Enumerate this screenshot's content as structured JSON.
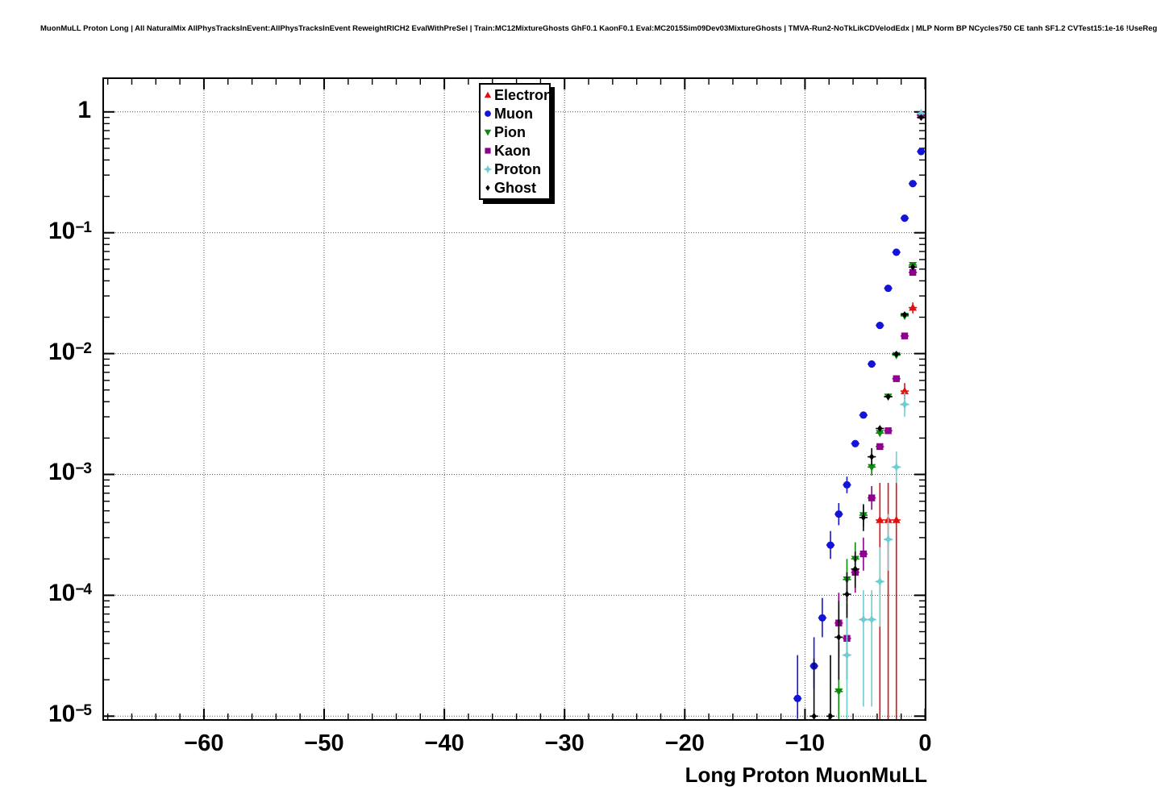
{
  "header": {
    "title": "MuonMuLL Proton Long | All NaturalMix AllPhysTracksInEvent:AllPhysTracksInEvent ReweightRICH2 EvalWithPreSel | Train:MC12MixtureGhosts GhF0.1 KaonF0.1 Eval:MC2015Sim09Dev03MixtureGhosts | TMVA-Run2-NoTkLikCDVelodEdx | MLP Norm BP NCycles750 CE tanh SF1.2 CVTest15:1e-16 !UseReg"
  },
  "legend": {
    "items": [
      {
        "label": "Electron",
        "series": "electron"
      },
      {
        "label": "Muon",
        "series": "muon"
      },
      {
        "label": "Pion",
        "series": "pion"
      },
      {
        "label": "Kaon",
        "series": "kaon"
      },
      {
        "label": "Proton",
        "series": "proton"
      },
      {
        "label": "Ghost",
        "series": "ghost"
      }
    ]
  },
  "colors": {
    "frame": "#000000",
    "grid": "#555555",
    "background": "#ffffff"
  },
  "chart_data": {
    "type": "scatter",
    "title": "MuonMuLL Proton Long | All NaturalMix AllPhysTracksInEvent:AllPhysTracksInEvent ReweightRICH2 EvalWithPreSel | Train:MC12MixtureGhosts GhF0.1 KaonF0.1 Eval:MC2015Sim09Dev03MixtureGhosts | TMVA-Run2-NoTkLikCDVelodEdx | MLP Norm BP NCycles750 CE tanh SF1.2 CVTest15:1e-16 !UseReg",
    "xlabel": "Long Proton MuonMuLL",
    "ylabel": "",
    "y_scale": "log",
    "grid": true,
    "legend_position": "top-right",
    "x_range": [
      -68.38,
      0.033
    ],
    "y_range": [
      9.3e-06,
      1.9
    ],
    "x_ticks": {
      "major": [
        {
          "value": -60,
          "label": "−60"
        },
        {
          "value": -50,
          "label": "−50"
        },
        {
          "value": -40,
          "label": "−40"
        },
        {
          "value": -30,
          "label": "−30"
        },
        {
          "value": -20,
          "label": "−20"
        },
        {
          "value": -10,
          "label": "−10"
        },
        {
          "value": 0,
          "label": "0"
        }
      ],
      "minor_step": 2
    },
    "y_ticks": {
      "labels": [
        {
          "value": 1,
          "base": "1",
          "sup": ""
        },
        {
          "value": 0.1,
          "base": "10",
          "sup": "−1"
        },
        {
          "value": 0.01,
          "base": "10",
          "sup": "−2"
        },
        {
          "value": 0.001,
          "base": "10",
          "sup": "−3"
        },
        {
          "value": 0.0001,
          "base": "10",
          "sup": "−4"
        },
        {
          "value": 1e-05,
          "base": "10",
          "sup": "−5"
        }
      ]
    },
    "bin_half_width": 0.343,
    "series": [
      {
        "name": "electron",
        "label": "Electron",
        "marker": "triangle-up",
        "color": "#e11010",
        "points": [
          [
            -0.34,
            0.945
          ],
          [
            -1.03,
            0.024,
            0.0215,
            0.0265
          ],
          [
            -1.71,
            0.0049,
            0.0042,
            0.0057
          ],
          [
            -2.4,
            0.00042,
            1e-06,
            0.00085
          ],
          [
            -3.08,
            0.00042,
            1e-06,
            0.00085
          ],
          [
            -3.77,
            0.00042,
            1e-06,
            0.00085
          ]
        ]
      },
      {
        "name": "muon",
        "label": "Muon",
        "marker": "circle",
        "color": "#1414d8",
        "points": [
          [
            -0.34,
            0.47
          ],
          [
            -1.03,
            0.255
          ],
          [
            -1.71,
            0.132
          ],
          [
            -2.4,
            0.069
          ],
          [
            -3.08,
            0.0347
          ],
          [
            -3.77,
            0.0171
          ],
          [
            -4.45,
            0.0082
          ],
          [
            -5.14,
            0.0031
          ],
          [
            -5.82,
            0.0018
          ],
          [
            -6.51,
            0.00082,
            0.0007,
            0.00096
          ],
          [
            -7.19,
            0.00047,
            0.00038,
            0.00058
          ],
          [
            -7.88,
            0.00026,
            0.0002,
            0.00034
          ],
          [
            -8.56,
            6.5e-05,
            4.5e-05,
            9.5e-05
          ],
          [
            -9.25,
            2.6e-05,
            1.7e-05,
            4.5e-05
          ],
          [
            -10.62,
            1.4e-05,
            9.5e-06,
            3.2e-05
          ]
        ]
      },
      {
        "name": "pion",
        "label": "Pion",
        "marker": "triangle-down",
        "color": "#0c8a0c",
        "points": [
          [
            -0.34,
            0.935
          ],
          [
            -1.03,
            0.054
          ],
          [
            -1.71,
            0.0205
          ],
          [
            -2.4,
            0.0097
          ],
          [
            -3.08,
            0.0044
          ],
          [
            -3.77,
            0.0022
          ],
          [
            -4.45,
            0.00115,
            0.00098,
            0.00135
          ],
          [
            -5.14,
            0.00046,
            0.00037,
            0.00057
          ],
          [
            -5.82,
            0.0002,
            0.000145,
            0.000275
          ],
          [
            -6.51,
            0.000135,
            9e-05,
            0.0002
          ],
          [
            -7.19,
            1.6e-05,
            1e-06,
            4e-05
          ]
        ]
      },
      {
        "name": "kaon",
        "label": "Kaon",
        "marker": "square",
        "color": "#8f008f",
        "points": [
          [
            -0.34,
            0.94
          ],
          [
            -1.03,
            0.047
          ],
          [
            -1.71,
            0.014
          ],
          [
            -2.4,
            0.0062
          ],
          [
            -3.08,
            0.0023
          ],
          [
            -3.77,
            0.0017
          ],
          [
            -4.45,
            0.00064,
            0.00051,
            0.0008
          ],
          [
            -5.14,
            0.00022,
            0.00016,
            0.0003
          ],
          [
            -5.82,
            0.000155,
            0.000105,
            0.00022
          ],
          [
            -6.51,
            4.4e-05,
            2e-05,
            8.5e-05
          ],
          [
            -7.19,
            5.9e-05,
            3e-05,
            0.000105
          ]
        ]
      },
      {
        "name": "proton",
        "label": "Proton",
        "marker": "star4",
        "color": "#70cdcf",
        "points": [
          [
            -0.34,
            0.97
          ],
          [
            -1.71,
            0.0038,
            0.003,
            0.0048
          ],
          [
            -2.4,
            0.00115,
            0.00085,
            0.00155
          ],
          [
            -3.08,
            0.00029,
            0.00016,
            0.00047
          ],
          [
            -3.77,
            0.00013,
            5.5e-05,
            0.00025
          ],
          [
            -4.45,
            6.3e-05,
            1.2e-05,
            0.00011
          ],
          [
            -5.14,
            6.3e-05,
            1.2e-05,
            0.00011
          ],
          [
            -6.51,
            3.2e-05,
            1e-06,
            8e-05
          ]
        ]
      },
      {
        "name": "ghost",
        "label": "Ghost",
        "marker": "diamond",
        "color": "#000000",
        "points": [
          [
            -0.34,
            0.9
          ],
          [
            -1.03,
            0.052
          ],
          [
            -1.71,
            0.021
          ],
          [
            -2.4,
            0.0099
          ],
          [
            -3.08,
            0.0044
          ],
          [
            -3.77,
            0.0024
          ],
          [
            -4.45,
            0.0014,
            0.0012,
            0.00165
          ],
          [
            -5.14,
            0.00044,
            0.00034,
            0.00056
          ],
          [
            -5.82,
            0.000165,
            0.000115,
            0.00023
          ],
          [
            -6.51,
            0.000102,
            6.5e-05,
            0.000155
          ],
          [
            -7.19,
            4.5e-05,
            2e-05,
            9e-05
          ],
          [
            -7.88,
            1e-05,
            1e-06,
            3.2e-05
          ],
          [
            -9.25,
            1e-05,
            1e-06,
            3e-05
          ]
        ]
      }
    ]
  }
}
